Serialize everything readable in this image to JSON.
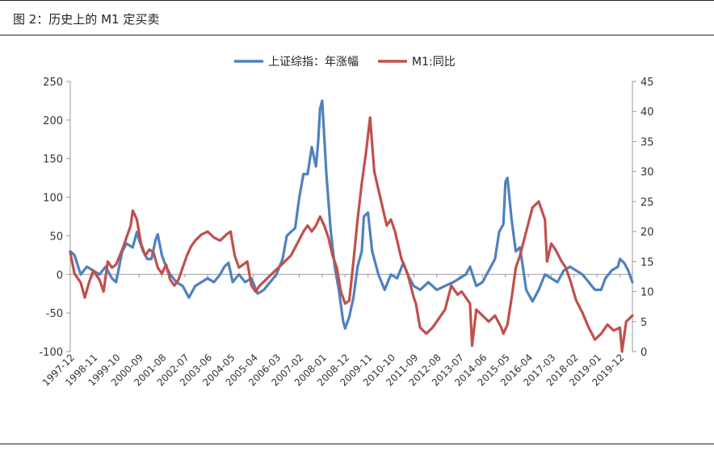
{
  "header": {
    "title": "图 2：历史上的 M1 定买卖"
  },
  "chart_data": {
    "type": "line",
    "title": "",
    "legend_position": "top-center",
    "y_left": {
      "min": -100,
      "max": 250,
      "ticks": [
        -100,
        -50,
        0,
        50,
        100,
        150,
        200,
        250
      ]
    },
    "y_right": {
      "min": 0,
      "max": 45,
      "ticks": [
        0,
        5,
        10,
        15,
        20,
        25,
        30,
        35,
        40,
        45
      ]
    },
    "x_tick_labels": [
      "1997-12",
      "1998-11",
      "1999-10",
      "2000-09",
      "2001-08",
      "2002-07",
      "2003-06",
      "2004-05",
      "2005-04",
      "2006-03",
      "2007-02",
      "2008-01",
      "2008-12",
      "2009-11",
      "2010-10",
      "2011-09",
      "2012-08",
      "2013-07",
      "2014-06",
      "2015-05",
      "2016-04",
      "2017-03",
      "2018-02",
      "2019-01",
      "2019-12"
    ],
    "x_range": [
      "1997-12",
      "2020-06"
    ],
    "series": [
      {
        "name": "上证综指：年涨幅",
        "color": "#4f81bd",
        "axis": "left",
        "points": [
          [
            "1997-12",
            30
          ],
          [
            "1998-02",
            25
          ],
          [
            "1998-05",
            0
          ],
          [
            "1998-08",
            10
          ],
          [
            "1998-11",
            5
          ],
          [
            "1999-02",
            0
          ],
          [
            "1999-05",
            10
          ],
          [
            "1999-08",
            -5
          ],
          [
            "1999-10",
            -10
          ],
          [
            "2000-01",
            30
          ],
          [
            "2000-03",
            40
          ],
          [
            "2000-06",
            35
          ],
          [
            "2000-08",
            55
          ],
          [
            "2000-09",
            45
          ],
          [
            "2000-11",
            30
          ],
          [
            "2001-01",
            20
          ],
          [
            "2001-03",
            20
          ],
          [
            "2001-05",
            45
          ],
          [
            "2001-06",
            52
          ],
          [
            "2001-08",
            25
          ],
          [
            "2001-10",
            10
          ],
          [
            "2001-12",
            0
          ],
          [
            "2002-03",
            -10
          ],
          [
            "2002-06",
            -15
          ],
          [
            "2002-09",
            -30
          ],
          [
            "2002-12",
            -15
          ],
          [
            "2003-03",
            -10
          ],
          [
            "2003-06",
            -5
          ],
          [
            "2003-09",
            -10
          ],
          [
            "2003-12",
            0
          ],
          [
            "2004-02",
            10
          ],
          [
            "2004-04",
            15
          ],
          [
            "2004-06",
            -10
          ],
          [
            "2004-09",
            0
          ],
          [
            "2004-12",
            -10
          ],
          [
            "2005-03",
            -5
          ],
          [
            "2005-06",
            -25
          ],
          [
            "2005-09",
            -20
          ],
          [
            "2005-12",
            -10
          ],
          [
            "2006-03",
            0
          ],
          [
            "2006-06",
            20
          ],
          [
            "2006-08",
            50
          ],
          [
            "2006-10",
            55
          ],
          [
            "2006-12",
            60
          ],
          [
            "2007-02",
            100
          ],
          [
            "2007-04",
            130
          ],
          [
            "2007-06",
            130
          ],
          [
            "2007-08",
            165
          ],
          [
            "2007-10",
            140
          ],
          [
            "2007-11",
            170
          ],
          [
            "2007-12",
            215
          ],
          [
            "2008-01",
            225
          ],
          [
            "2008-03",
            130
          ],
          [
            "2008-05",
            60
          ],
          [
            "2008-07",
            10
          ],
          [
            "2008-09",
            -20
          ],
          [
            "2008-11",
            -60
          ],
          [
            "2008-12",
            -70
          ],
          [
            "2009-02",
            -55
          ],
          [
            "2009-04",
            -30
          ],
          [
            "2009-06",
            10
          ],
          [
            "2009-08",
            30
          ],
          [
            "2009-09",
            75
          ],
          [
            "2009-11",
            80
          ],
          [
            "2010-01",
            30
          ],
          [
            "2010-04",
            0
          ],
          [
            "2010-07",
            -20
          ],
          [
            "2010-10",
            0
          ],
          [
            "2011-01",
            -5
          ],
          [
            "2011-04",
            15
          ],
          [
            "2011-06",
            0
          ],
          [
            "2011-09",
            -15
          ],
          [
            "2011-12",
            -20
          ],
          [
            "2012-04",
            -10
          ],
          [
            "2012-08",
            -20
          ],
          [
            "2012-12",
            -15
          ],
          [
            "2013-04",
            -10
          ],
          [
            "2013-07",
            -5
          ],
          [
            "2013-10",
            0
          ],
          [
            "2013-12",
            10
          ],
          [
            "2014-03",
            -15
          ],
          [
            "2014-06",
            -10
          ],
          [
            "2014-09",
            5
          ],
          [
            "2014-12",
            20
          ],
          [
            "2015-02",
            55
          ],
          [
            "2015-04",
            65
          ],
          [
            "2015-05",
            120
          ],
          [
            "2015-06",
            125
          ],
          [
            "2015-08",
            70
          ],
          [
            "2015-10",
            30
          ],
          [
            "2015-12",
            35
          ],
          [
            "2016-03",
            -20
          ],
          [
            "2016-06",
            -35
          ],
          [
            "2016-09",
            -20
          ],
          [
            "2016-12",
            0
          ],
          [
            "2017-03",
            -5
          ],
          [
            "2017-06",
            -10
          ],
          [
            "2017-09",
            5
          ],
          [
            "2017-12",
            10
          ],
          [
            "2018-03",
            5
          ],
          [
            "2018-06",
            0
          ],
          [
            "2018-09",
            -10
          ],
          [
            "2018-12",
            -20
          ],
          [
            "2019-03",
            -20
          ],
          [
            "2019-05",
            -5
          ],
          [
            "2019-08",
            5
          ],
          [
            "2019-11",
            10
          ],
          [
            "2019-12",
            20
          ],
          [
            "2020-02",
            15
          ],
          [
            "2020-04",
            5
          ],
          [
            "2020-06",
            -10
          ]
        ]
      },
      {
        "name": "M1:同比",
        "color": "#c0504d",
        "axis": "right",
        "points": [
          [
            "1997-12",
            16.5
          ],
          [
            "1998-02",
            13
          ],
          [
            "1998-05",
            11.5
          ],
          [
            "1998-07",
            9
          ],
          [
            "1998-09",
            11.5
          ],
          [
            "1998-11",
            13.5
          ],
          [
            "1999-02",
            12
          ],
          [
            "1999-04",
            10
          ],
          [
            "1999-06",
            15
          ],
          [
            "1999-08",
            14
          ],
          [
            "1999-10",
            14.5
          ],
          [
            "2000-01",
            17
          ],
          [
            "2000-03",
            19
          ],
          [
            "2000-05",
            21
          ],
          [
            "2000-06",
            23.5
          ],
          [
            "2000-08",
            22
          ],
          [
            "2000-10",
            18
          ],
          [
            "2000-12",
            16
          ],
          [
            "2001-02",
            17
          ],
          [
            "2001-04",
            16.5
          ],
          [
            "2001-06",
            14
          ],
          [
            "2001-08",
            13
          ],
          [
            "2001-10",
            14.5
          ],
          [
            "2001-12",
            12
          ],
          [
            "2002-02",
            11
          ],
          [
            "2002-04",
            12
          ],
          [
            "2002-06",
            14
          ],
          [
            "2002-08",
            16
          ],
          [
            "2002-10",
            17.5
          ],
          [
            "2002-12",
            18.5
          ],
          [
            "2003-03",
            19.5
          ],
          [
            "2003-06",
            20
          ],
          [
            "2003-09",
            19
          ],
          [
            "2003-12",
            18.5
          ],
          [
            "2004-03",
            19.5
          ],
          [
            "2004-05",
            20
          ],
          [
            "2004-07",
            16
          ],
          [
            "2004-09",
            14
          ],
          [
            "2004-11",
            14.5
          ],
          [
            "2005-01",
            15
          ],
          [
            "2005-03",
            11
          ],
          [
            "2005-05",
            10
          ],
          [
            "2005-07",
            11
          ],
          [
            "2005-10",
            12
          ],
          [
            "2006-01",
            13
          ],
          [
            "2006-04",
            14
          ],
          [
            "2006-07",
            15
          ],
          [
            "2006-10",
            16
          ],
          [
            "2007-01",
            18
          ],
          [
            "2007-04",
            20
          ],
          [
            "2007-06",
            21
          ],
          [
            "2007-08",
            20
          ],
          [
            "2007-10",
            21
          ],
          [
            "2007-12",
            22.5
          ],
          [
            "2008-02",
            21
          ],
          [
            "2008-04",
            19
          ],
          [
            "2008-06",
            16
          ],
          [
            "2008-08",
            14
          ],
          [
            "2008-10",
            10
          ],
          [
            "2008-12",
            8
          ],
          [
            "2009-02",
            8.5
          ],
          [
            "2009-04",
            15
          ],
          [
            "2009-06",
            22
          ],
          [
            "2009-08",
            28
          ],
          [
            "2009-10",
            33
          ],
          [
            "2009-12",
            39
          ],
          [
            "2010-02",
            30
          ],
          [
            "2010-04",
            27
          ],
          [
            "2010-06",
            24
          ],
          [
            "2010-08",
            21
          ],
          [
            "2010-10",
            22
          ],
          [
            "2010-12",
            20
          ],
          [
            "2011-03",
            15.5
          ],
          [
            "2011-06",
            13
          ],
          [
            "2011-09",
            9
          ],
          [
            "2011-10",
            8
          ],
          [
            "2011-12",
            4
          ],
          [
            "2012-03",
            3
          ],
          [
            "2012-06",
            4
          ],
          [
            "2012-08",
            5
          ],
          [
            "2012-10",
            6
          ],
          [
            "2012-12",
            7
          ],
          [
            "2013-03",
            11
          ],
          [
            "2013-06",
            9.5
          ],
          [
            "2013-08",
            10
          ],
          [
            "2013-10",
            9
          ],
          [
            "2013-12",
            8
          ],
          [
            "2014-01",
            1
          ],
          [
            "2014-03",
            7
          ],
          [
            "2014-06",
            6
          ],
          [
            "2014-09",
            5
          ],
          [
            "2014-12",
            6
          ],
          [
            "2015-03",
            4
          ],
          [
            "2015-04",
            3
          ],
          [
            "2015-06",
            4.5
          ],
          [
            "2015-08",
            9
          ],
          [
            "2015-10",
            14
          ],
          [
            "2015-12",
            16
          ],
          [
            "2016-03",
            20
          ],
          [
            "2016-06",
            24
          ],
          [
            "2016-09",
            25
          ],
          [
            "2016-12",
            22
          ],
          [
            "2017-01",
            15
          ],
          [
            "2017-03",
            18
          ],
          [
            "2017-05",
            17
          ],
          [
            "2017-08",
            15
          ],
          [
            "2017-10",
            14
          ],
          [
            "2017-12",
            12
          ],
          [
            "2018-03",
            8.5
          ],
          [
            "2018-06",
            6.5
          ],
          [
            "2018-09",
            4
          ],
          [
            "2018-12",
            2
          ],
          [
            "2019-03",
            3
          ],
          [
            "2019-06",
            4.5
          ],
          [
            "2019-09",
            3.5
          ],
          [
            "2019-12",
            4
          ],
          [
            "2020-01",
            0
          ],
          [
            "2020-03",
            5
          ],
          [
            "2020-06",
            6
          ]
        ]
      }
    ]
  }
}
